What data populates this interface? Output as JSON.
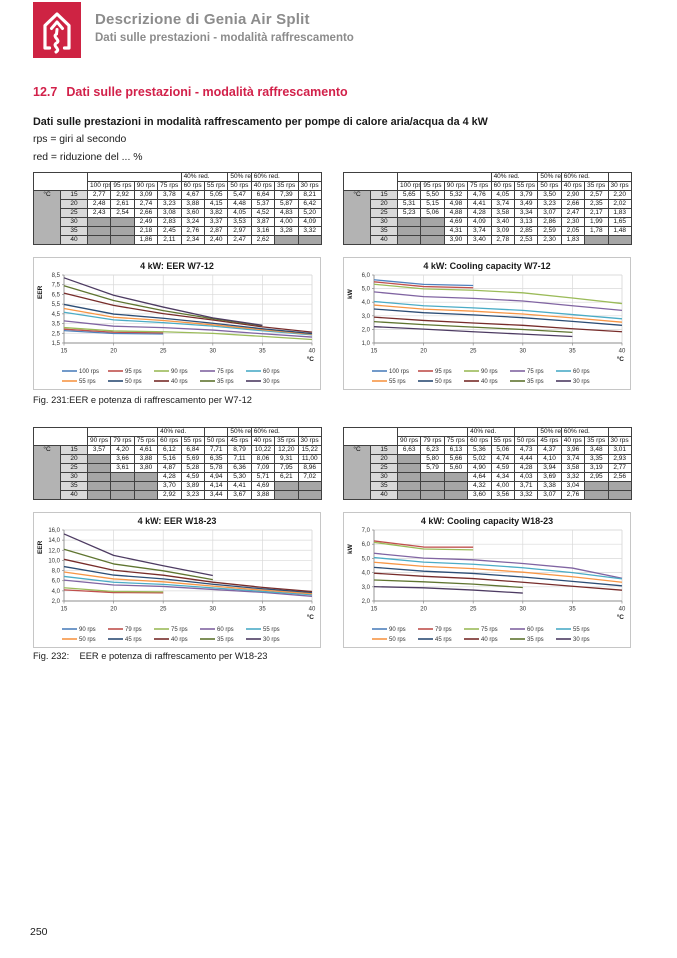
{
  "page": {
    "header": {
      "title": "Descrizione di Genia Air Split",
      "subtitle": "Dati sulle prestazioni - modalità raffrescamento"
    },
    "section": {
      "number": "12.7",
      "title": "Dati sulle prestazioni - modalità raffrescamento"
    },
    "intro": {
      "line1": "Dati sulle prestazioni in modalità raffrescamento per pompe di calore aria/acqua da 4 kW",
      "line2": "rps = giri al secondo",
      "line3": "red = riduzione del ... %"
    },
    "captions": {
      "fig1": "Fig. 231:EER e potenza di raffrescamento per W7-12",
      "fig2": "Fig. 232:    EER e potenza di raffrescamento per W18-23"
    },
    "page_number": "250"
  },
  "icons": {
    "logo": "house-with-up-arrow"
  },
  "colors": {
    "brand_red": "#CE2343",
    "heading_red": "#D2214A",
    "header_gray": "#8C8C8C",
    "table_unit_bg": "#B3B3B3",
    "table_temp_bg": "#D9D9D9",
    "table_blocked_bg": "#A6A6A6",
    "grid": "#D9D9D9",
    "axis": "#8C8C8C",
    "series": [
      "#4F81BD",
      "#C0504D",
      "#9BBB59",
      "#8064A2",
      "#4BACC6",
      "#F79646",
      "#2C4D75",
      "#772C2A",
      "#5F7530",
      "#4D3B62"
    ]
  },
  "tables": [
    {
      "unit_label": "°C",
      "reduction_header": [
        {
          "label": "",
          "span": 4
        },
        {
          "label": "40% red.",
          "span": 2
        },
        {
          "label": "50% red",
          "span": 1
        },
        {
          "label": "60% red.",
          "span": 2
        },
        {
          "label": "",
          "span": 1
        }
      ],
      "columns": [
        "100 rps",
        "95 rps",
        "90 rps",
        "75 rps",
        "60 rps",
        "55 rps",
        "50 rps",
        "40 rps",
        "35 rps",
        "30 rps"
      ],
      "rows": [
        {
          "temp": "15",
          "values": [
            "2,77",
            "2,92",
            "3,09",
            "3,78",
            "4,67",
            "5,05",
            "5,47",
            "6,64",
            "7,39",
            "8,21"
          ]
        },
        {
          "temp": "20",
          "values": [
            "2,48",
            "2,61",
            "2,74",
            "3,23",
            "3,88",
            "4,15",
            "4,48",
            "5,37",
            "5,87",
            "6,42"
          ]
        },
        {
          "temp": "25",
          "values": [
            "2,43",
            "2,54",
            "2,66",
            "3,08",
            "3,60",
            "3,82",
            "4,05",
            "4,52",
            "4,83",
            "5,20"
          ]
        },
        {
          "temp": "30",
          "values": [
            null,
            null,
            "2,49",
            "2,83",
            "3,24",
            "3,37",
            "3,53",
            "3,87",
            "4,00",
            "4,09"
          ]
        },
        {
          "temp": "35",
          "values": [
            null,
            null,
            "2,18",
            "2,45",
            "2,76",
            "2,87",
            "2,97",
            "3,16",
            "3,28",
            "3,32"
          ]
        },
        {
          "temp": "40",
          "values": [
            null,
            null,
            "1,86",
            "2,11",
            "2,34",
            "2,40",
            "2,47",
            "2,62",
            null,
            null
          ]
        }
      ]
    },
    {
      "unit_label": "°C",
      "reduction_header": [
        {
          "label": "",
          "span": 4
        },
        {
          "label": "40% red.",
          "span": 2
        },
        {
          "label": "50% red",
          "span": 1
        },
        {
          "label": "60% red.",
          "span": 2
        },
        {
          "label": "",
          "span": 1
        }
      ],
      "columns": [
        "100 rps",
        "95 rps",
        "90 rps",
        "75 rps",
        "60 rps",
        "55 rps",
        "50 rps",
        "40 rps",
        "35 rps",
        "30 rps"
      ],
      "rows": [
        {
          "temp": "15",
          "values": [
            "5,65",
            "5,50",
            "5,32",
            "4,76",
            "4,05",
            "3,79",
            "3,50",
            "2,90",
            "2,57",
            "2,20"
          ]
        },
        {
          "temp": "20",
          "values": [
            "5,31",
            "5,15",
            "4,98",
            "4,41",
            "3,74",
            "3,49",
            "3,23",
            "2,66",
            "2,35",
            "2,02"
          ]
        },
        {
          "temp": "25",
          "values": [
            "5,23",
            "5,06",
            "4,88",
            "4,28",
            "3,58",
            "3,34",
            "3,07",
            "2,47",
            "2,17",
            "1,83"
          ]
        },
        {
          "temp": "30",
          "values": [
            null,
            null,
            "4,69",
            "4,09",
            "3,40",
            "3,13",
            "2,86",
            "2,30",
            "1,99",
            "1,65"
          ]
        },
        {
          "temp": "35",
          "values": [
            null,
            null,
            "4,31",
            "3,74",
            "3,09",
            "2,85",
            "2,59",
            "2,05",
            "1,78",
            "1,48"
          ]
        },
        {
          "temp": "40",
          "values": [
            null,
            null,
            "3,90",
            "3,40",
            "2,78",
            "2,53",
            "2,30",
            "1,83",
            null,
            null
          ]
        }
      ]
    },
    {
      "unit_label": "°C",
      "reduction_header": [
        {
          "label": "",
          "span": 3
        },
        {
          "label": "40% red.",
          "span": 2
        },
        {
          "label": "",
          "span": 1
        },
        {
          "label": "50% red",
          "span": 1
        },
        {
          "label": "60% red.",
          "span": 2
        },
        {
          "label": "",
          "span": 1
        }
      ],
      "columns": [
        "90 rps",
        "79 rps",
        "75 rps",
        "60 rps",
        "55 rps",
        "50 rps",
        "45 rps",
        "40 rps",
        "35 rps",
        "30 rps"
      ],
      "rows": [
        {
          "temp": "15",
          "values": [
            "3,57",
            "4,20",
            "4,61",
            "6,12",
            "6,84",
            "7,71",
            "8,79",
            "10,22",
            "12,20",
            "15,22"
          ]
        },
        {
          "temp": "20",
          "values": [
            null,
            "3,66",
            "3,88",
            "5,16",
            "5,69",
            "6,35",
            "7,11",
            "8,06",
            "9,31",
            "11,00"
          ]
        },
        {
          "temp": "25",
          "values": [
            null,
            "3,61",
            "3,80",
            "4,87",
            "5,28",
            "5,78",
            "6,36",
            "7,09",
            "7,95",
            "8,96"
          ]
        },
        {
          "temp": "30",
          "values": [
            null,
            null,
            null,
            "4,28",
            "4,59",
            "4,94",
            "5,30",
            "5,71",
            "6,21",
            "7,02"
          ]
        },
        {
          "temp": "35",
          "values": [
            null,
            null,
            null,
            "3,70",
            "3,89",
            "4,14",
            "4,41",
            "4,69",
            null,
            null
          ]
        },
        {
          "temp": "40",
          "values": [
            null,
            null,
            null,
            "2,92",
            "3,23",
            "3,44",
            "3,67",
            "3,88",
            null,
            null
          ]
        }
      ]
    },
    {
      "unit_label": "°C",
      "reduction_header": [
        {
          "label": "",
          "span": 3
        },
        {
          "label": "40% red.",
          "span": 2
        },
        {
          "label": "",
          "span": 1
        },
        {
          "label": "50% red",
          "span": 1
        },
        {
          "label": "60% red.",
          "span": 2
        },
        {
          "label": "",
          "span": 1
        }
      ],
      "columns": [
        "90 rps",
        "79 rps",
        "75 rps",
        "60 rps",
        "55 rps",
        "50 rps",
        "45 rps",
        "40 rps",
        "35 rps",
        "30 rps"
      ],
      "rows": [
        {
          "temp": "15",
          "values": [
            "6,63",
            "6,23",
            "6,13",
            "5,36",
            "5,06",
            "4,73",
            "4,37",
            "3,96",
            "3,48",
            "3,01"
          ]
        },
        {
          "temp": "20",
          "values": [
            null,
            "5,80",
            "5,66",
            "5,02",
            "4,74",
            "4,44",
            "4,10",
            "3,74",
            "3,35",
            "2,93"
          ]
        },
        {
          "temp": "25",
          "values": [
            null,
            "5,79",
            "5,60",
            "4,90",
            "4,59",
            "4,28",
            "3,94",
            "3,58",
            "3,19",
            "2,77"
          ]
        },
        {
          "temp": "30",
          "values": [
            null,
            null,
            null,
            "4,64",
            "4,34",
            "4,03",
            "3,69",
            "3,32",
            "2,95",
            "2,56"
          ]
        },
        {
          "temp": "35",
          "values": [
            null,
            null,
            null,
            "4,32",
            "4,00",
            "3,71",
            "3,38",
            "3,04",
            null,
            null
          ]
        },
        {
          "temp": "40",
          "values": [
            null,
            null,
            null,
            "3,60",
            "3,56",
            "3,32",
            "3,07",
            "2,76",
            null,
            null
          ]
        }
      ]
    }
  ],
  "chart_data": [
    {
      "type": "line",
      "title": "4 kW: EER W7-12",
      "ylabel": "EER",
      "xlabel": "°C",
      "x": [
        15,
        20,
        25,
        30,
        35,
        40
      ],
      "ylim": [
        1.5,
        8.5
      ],
      "ytick_step": 1,
      "grid": true,
      "legend_position": "bottom",
      "series": [
        {
          "name": "100 rps",
          "values": [
            2.77,
            2.48,
            2.43,
            null,
            null,
            null
          ]
        },
        {
          "name": "95 rps",
          "values": [
            2.92,
            2.61,
            2.54,
            null,
            null,
            null
          ]
        },
        {
          "name": "90 rps",
          "values": [
            3.09,
            2.74,
            2.66,
            2.49,
            2.18,
            1.86
          ]
        },
        {
          "name": "75 rps",
          "values": [
            3.78,
            3.23,
            3.08,
            2.83,
            2.45,
            2.11
          ]
        },
        {
          "name": "60 rps",
          "values": [
            4.67,
            3.88,
            3.6,
            3.24,
            2.76,
            2.34
          ]
        },
        {
          "name": "55 rps",
          "values": [
            5.05,
            4.15,
            3.82,
            3.37,
            2.87,
            2.4
          ]
        },
        {
          "name": "50 rps",
          "values": [
            5.47,
            4.48,
            4.05,
            3.53,
            2.97,
            2.47
          ]
        },
        {
          "name": "40 rps",
          "values": [
            6.64,
            5.37,
            4.52,
            3.87,
            3.16,
            2.62
          ]
        },
        {
          "name": "35 rps",
          "values": [
            7.39,
            5.87,
            4.83,
            4.0,
            3.28,
            null
          ]
        },
        {
          "name": "30 rps",
          "values": [
            8.21,
            6.42,
            5.2,
            4.09,
            3.32,
            null
          ]
        }
      ]
    },
    {
      "type": "line",
      "title": "4 kW: Cooling capacity W7-12",
      "ylabel": "kW",
      "xlabel": "°C",
      "x": [
        15,
        20,
        25,
        30,
        35,
        40
      ],
      "ylim": [
        1.0,
        6.0
      ],
      "ytick_step": 1,
      "grid": true,
      "legend_position": "bottom",
      "series": [
        {
          "name": "100 rps",
          "values": [
            5.65,
            5.31,
            5.23,
            null,
            null,
            null
          ]
        },
        {
          "name": "95 rps",
          "values": [
            5.5,
            5.15,
            5.06,
            null,
            null,
            null
          ]
        },
        {
          "name": "90 rps",
          "values": [
            5.32,
            4.98,
            4.88,
            4.69,
            4.31,
            3.9
          ]
        },
        {
          "name": "75 rps",
          "values": [
            4.76,
            4.41,
            4.28,
            4.09,
            3.74,
            3.4
          ]
        },
        {
          "name": "60 rps",
          "values": [
            4.05,
            3.74,
            3.58,
            3.4,
            3.09,
            2.78
          ]
        },
        {
          "name": "55 rps",
          "values": [
            3.79,
            3.49,
            3.34,
            3.13,
            2.85,
            2.53
          ]
        },
        {
          "name": "50 rps",
          "values": [
            3.5,
            3.23,
            3.07,
            2.86,
            2.59,
            2.3
          ]
        },
        {
          "name": "40 rps",
          "values": [
            2.9,
            2.66,
            2.47,
            2.3,
            2.05,
            1.83
          ]
        },
        {
          "name": "35 rps",
          "values": [
            2.57,
            2.35,
            2.17,
            1.99,
            1.78,
            null
          ]
        },
        {
          "name": "30 rps",
          "values": [
            2.2,
            2.02,
            1.83,
            1.65,
            1.48,
            null
          ]
        }
      ]
    },
    {
      "type": "line",
      "title": "4 kW: EER W18-23",
      "ylabel": "EER",
      "xlabel": "°C",
      "x": [
        15,
        20,
        25,
        30,
        35,
        40
      ],
      "ylim": [
        2.0,
        16.0
      ],
      "ytick_step": 2,
      "grid": true,
      "legend_position": "bottom",
      "series": [
        {
          "name": "90 rps",
          "values": [
            3.57,
            null,
            null,
            null,
            null,
            null
          ]
        },
        {
          "name": "79 rps",
          "values": [
            4.2,
            3.66,
            3.61,
            null,
            null,
            null
          ]
        },
        {
          "name": "75 rps",
          "values": [
            4.61,
            3.88,
            3.8,
            null,
            null,
            null
          ]
        },
        {
          "name": "60 rps",
          "values": [
            6.12,
            5.16,
            4.87,
            4.28,
            3.7,
            2.92
          ]
        },
        {
          "name": "55 rps",
          "values": [
            6.84,
            5.69,
            5.28,
            4.59,
            3.89,
            3.23
          ]
        },
        {
          "name": "50 rps",
          "values": [
            7.71,
            6.35,
            5.78,
            4.94,
            4.14,
            3.44
          ]
        },
        {
          "name": "45 rps",
          "values": [
            8.79,
            7.11,
            6.36,
            5.3,
            4.41,
            3.67
          ]
        },
        {
          "name": "40 rps",
          "values": [
            10.22,
            8.06,
            7.09,
            5.71,
            4.69,
            3.88
          ]
        },
        {
          "name": "35 rps",
          "values": [
            12.2,
            9.31,
            7.95,
            6.21,
            null,
            null
          ]
        },
        {
          "name": "30 rps",
          "values": [
            15.22,
            11.0,
            8.96,
            7.02,
            null,
            null
          ]
        }
      ]
    },
    {
      "type": "line",
      "title": "4 kW: Cooling capacity W18-23",
      "ylabel": "kW",
      "xlabel": "°C",
      "x": [
        15,
        20,
        25,
        30,
        35,
        40
      ],
      "ylim": [
        2.0,
        7.0
      ],
      "ytick_step": 1,
      "grid": true,
      "legend_position": "bottom",
      "series": [
        {
          "name": "90 rps",
          "values": [
            6.63,
            null,
            null,
            null,
            null,
            null
          ]
        },
        {
          "name": "79 rps",
          "values": [
            6.23,
            5.8,
            5.79,
            null,
            null,
            null
          ]
        },
        {
          "name": "75 rps",
          "values": [
            6.13,
            5.66,
            5.6,
            null,
            null,
            null
          ]
        },
        {
          "name": "60 rps",
          "values": [
            5.36,
            5.02,
            4.9,
            4.64,
            4.32,
            3.6
          ]
        },
        {
          "name": "55 rps",
          "values": [
            5.06,
            4.74,
            4.59,
            4.34,
            4.0,
            3.56
          ]
        },
        {
          "name": "50 rps",
          "values": [
            4.73,
            4.44,
            4.28,
            4.03,
            3.71,
            3.32
          ]
        },
        {
          "name": "45 rps",
          "values": [
            4.37,
            4.1,
            3.94,
            3.69,
            3.38,
            3.07
          ]
        },
        {
          "name": "40 rps",
          "values": [
            3.96,
            3.74,
            3.58,
            3.32,
            3.04,
            2.76
          ]
        },
        {
          "name": "35 rps",
          "values": [
            3.48,
            3.35,
            3.19,
            2.95,
            null,
            null
          ]
        },
        {
          "name": "30 rps",
          "values": [
            3.01,
            2.93,
            2.77,
            2.56,
            null,
            null
          ]
        }
      ]
    }
  ]
}
